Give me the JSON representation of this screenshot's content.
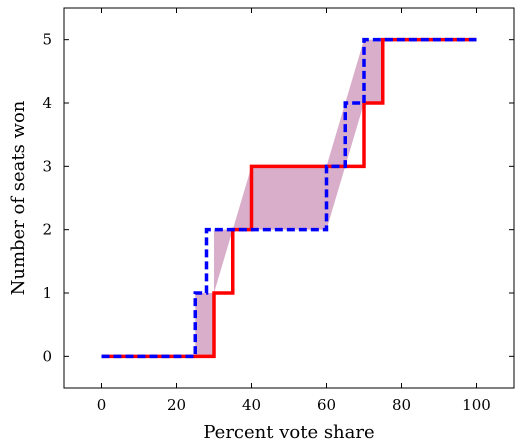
{
  "chart_data": {
    "type": "line",
    "xlabel": "Percent vote share",
    "ylabel": "Number of seats won",
    "xlim": [
      -10,
      110
    ],
    "ylim": [
      -0.5,
      5.5
    ],
    "x_ticks": [
      0,
      20,
      40,
      60,
      80,
      100
    ],
    "y_ticks": [
      0,
      1,
      2,
      3,
      4,
      5
    ],
    "grid": false,
    "series": [
      {
        "style": "solid step",
        "color": "#ff0000",
        "x": [
          0,
          30,
          30,
          35,
          35,
          40,
          40,
          70,
          70,
          75,
          75,
          100
        ],
        "y": [
          0,
          0,
          1,
          1,
          2,
          2,
          3,
          3,
          4,
          4,
          5,
          5
        ]
      },
      {
        "style": "dashed step",
        "color": "#0000ff",
        "x": [
          0,
          25,
          25,
          28,
          28,
          30,
          30,
          60,
          60,
          65,
          65,
          70,
          70,
          100
        ],
        "y": [
          0,
          0,
          1,
          1,
          2,
          2,
          2,
          2,
          3,
          3,
          4,
          4,
          5,
          5
        ]
      }
    ],
    "shaded_region": {
      "fill": "#d9aecb",
      "x": [
        25,
        30,
        30,
        35,
        40,
        60,
        65,
        70,
        75
      ],
      "y_upper": [
        1,
        1,
        2,
        2,
        3,
        3,
        4,
        5,
        5
      ],
      "y_lower": [
        0,
        0,
        1,
        2,
        2,
        2,
        3,
        4,
        4
      ]
    }
  }
}
